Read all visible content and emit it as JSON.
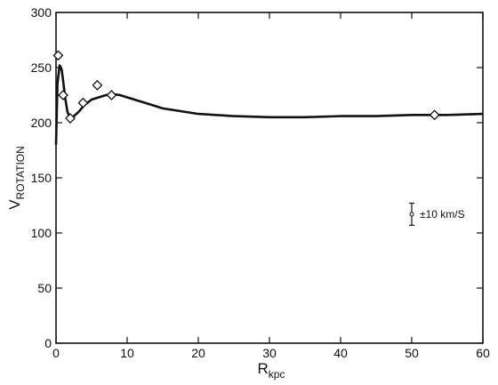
{
  "chart_data": {
    "type": "line",
    "title": "",
    "xlabel": {
      "main": "R",
      "sub": "kpc"
    },
    "ylabel": {
      "main": "V",
      "sub": "ROTATION"
    },
    "xlim": [
      0,
      60
    ],
    "ylim": [
      0,
      300
    ],
    "xticks": [
      0,
      10,
      20,
      30,
      40,
      50,
      60
    ],
    "yticks": [
      0,
      50,
      100,
      150,
      200,
      250,
      300
    ],
    "grid": false,
    "series": [
      {
        "kind": "line",
        "x": [
          0,
          0.2,
          0.5,
          0.8,
          1.0,
          1.3,
          1.6,
          1.9,
          2.3,
          2.7,
          3.2,
          4,
          5,
          6,
          7,
          8,
          9,
          10,
          12,
          15,
          20,
          25,
          30,
          35,
          40,
          45,
          50,
          55,
          60
        ],
        "values": [
          180,
          235,
          252,
          248,
          238,
          222,
          210,
          205,
          205,
          207,
          210,
          216,
          221,
          223,
          225,
          226,
          225,
          223,
          219,
          213,
          208,
          206,
          205,
          205,
          206,
          206,
          207,
          207,
          208
        ]
      },
      {
        "kind": "scatter",
        "marker": "diamond",
        "x": [
          0.3,
          1.0,
          2.0,
          3.8,
          5.8,
          7.8,
          53.2
        ],
        "values": [
          261,
          225,
          204,
          218,
          234,
          225,
          207
        ]
      }
    ],
    "annotations": [
      {
        "label": "±10 km/S",
        "x": 50,
        "y": 117,
        "error_bar": 10
      }
    ]
  }
}
